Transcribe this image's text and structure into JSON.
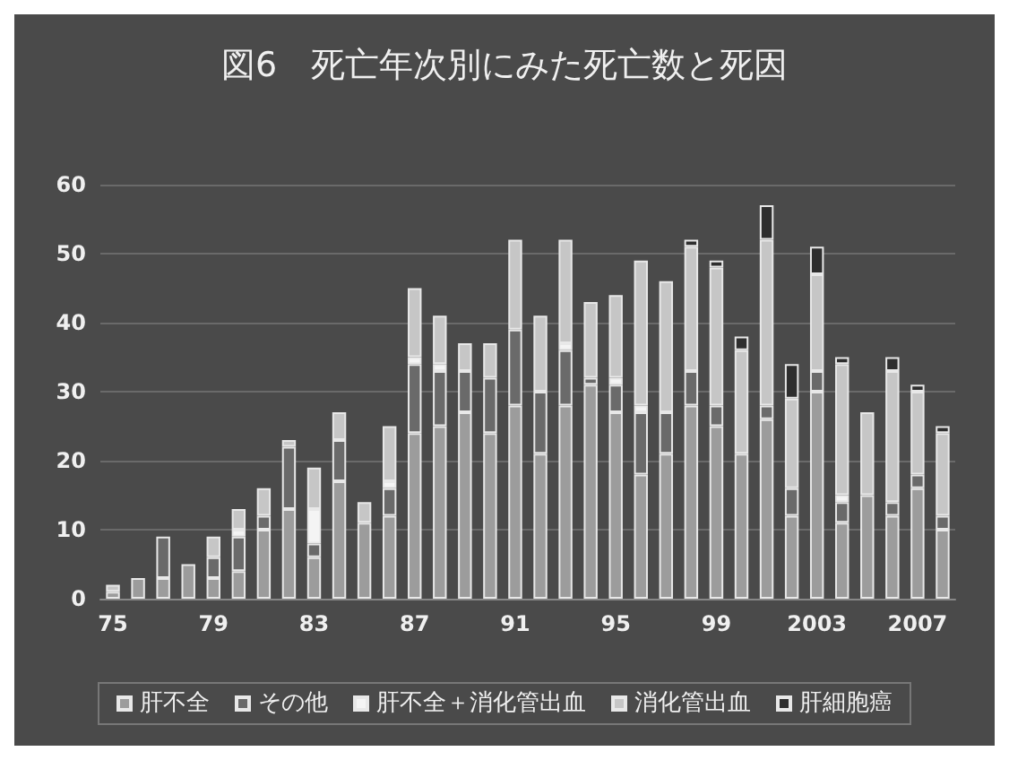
{
  "chart_data": {
    "type": "bar",
    "title": "図6　死亡年次別にみた死亡数と死因",
    "stacked": true,
    "categories": [
      "75",
      null,
      null,
      null,
      "79",
      null,
      null,
      null,
      "83",
      null,
      null,
      null,
      "87",
      null,
      null,
      null,
      "91",
      null,
      null,
      null,
      "95",
      null,
      null,
      null,
      "99",
      null,
      null,
      null,
      "2003",
      null,
      null,
      null,
      "2007",
      null
    ],
    "series": [
      {
        "name": "肝不全",
        "color": "#9c9c9c",
        "values": [
          1,
          3,
          3,
          5,
          3,
          4,
          10,
          13,
          6,
          17,
          11,
          12,
          24,
          25,
          27,
          24,
          28,
          21,
          28,
          31,
          27,
          18,
          21,
          28,
          25,
          21,
          26,
          12,
          30,
          11,
          15,
          12,
          16,
          10
        ]
      },
      {
        "name": "その他",
        "color": "#6a6a6a",
        "values": [
          0,
          0,
          6,
          0,
          3,
          5,
          2,
          9,
          2,
          6,
          0,
          4,
          10,
          8,
          6,
          8,
          11,
          9,
          8,
          1,
          4,
          9,
          6,
          5,
          3,
          0,
          2,
          4,
          3,
          3,
          0,
          2,
          2,
          2
        ]
      },
      {
        "name": "肝不全＋消化管出血",
        "color": "#f4f4f4",
        "values": [
          0,
          0,
          0,
          0,
          0,
          1,
          0,
          0,
          5,
          0,
          0,
          1,
          1,
          1,
          0,
          0,
          0,
          0,
          1,
          0,
          1,
          1,
          0,
          0,
          0,
          0,
          0,
          0,
          0,
          1,
          0,
          0,
          0,
          0
        ]
      },
      {
        "name": "消化管出血",
        "color": "#c6c6c6",
        "values": [
          1,
          0,
          0,
          0,
          3,
          3,
          4,
          1,
          6,
          4,
          3,
          8,
          10,
          7,
          4,
          5,
          13,
          11,
          15,
          11,
          12,
          21,
          19,
          18,
          20,
          15,
          24,
          13,
          14,
          19,
          12,
          19,
          12,
          12
        ]
      },
      {
        "name": "肝細胞癌",
        "color": "#2e2e2e",
        "values": [
          0,
          0,
          0,
          0,
          0,
          0,
          0,
          0,
          0,
          0,
          0,
          0,
          0,
          0,
          0,
          0,
          0,
          0,
          0,
          0,
          0,
          0,
          0,
          1,
          1,
          2,
          5,
          5,
          4,
          1,
          0,
          2,
          1,
          1
        ]
      }
    ],
    "ylim": [
      0,
      60
    ],
    "yticks": [
      0,
      10,
      20,
      30,
      40,
      50,
      60
    ],
    "grid": "y",
    "legend": "bottom"
  }
}
